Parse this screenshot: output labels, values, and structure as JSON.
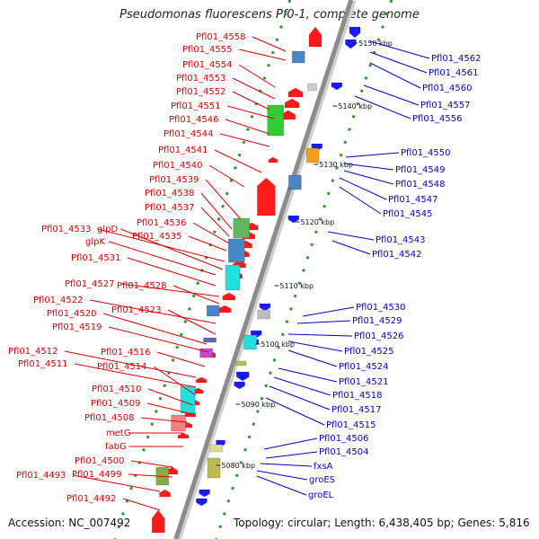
{
  "title": "Pseudomonas fluorescens Pf0-1, complete genome",
  "footer": {
    "accession": "Accession: NC_007492",
    "topology": "Topology: circular; Length: 6,438,405 bp; Genes: 5,816"
  },
  "colors": {
    "left_labels": "#dd0000",
    "right_labels": "#0000cc",
    "forward_arrows": "#ff1a1a",
    "reverse_arrows": "#1a1aff",
    "backbone": "#8c8c8c",
    "tick": "#2a9a2a"
  },
  "scale": [
    "5150 kbp",
    "5140 kbp",
    "5130 kbp",
    "5120 kbp",
    "5110 kbp",
    "5100 kbp",
    "5090 kbp",
    "5080 kbp"
  ],
  "left_labels": [
    "Pfl01_4558",
    "Pfl01_4555",
    "Pfl01_4554",
    "Pfl01_4553",
    "Pfl01_4552",
    "Pfl01_4551",
    "Pfl01_4546",
    "Pfl01_4544",
    "Pfl01_4541",
    "Pfl01_4540",
    "Pfl01_4539",
    "Pfl01_4538",
    "Pfl01_4537",
    "Pfl01_4536",
    "Pfl01_4535",
    "Pfl01_4533",
    "glpD",
    "glpK",
    "Pfl01_4531",
    "Pfl01_4527",
    "Pfl01_4528",
    "Pfl01_4522",
    "Pfl01_4523",
    "Pfl01_4520",
    "Pfl01_4519",
    "Pfl01_4512",
    "Pfl01_4516",
    "Pfl01_4511",
    "Pfl01_4514",
    "Pfl01_4510",
    "Pfl01_4509",
    "Pfl01_4508",
    "metG",
    "fabG",
    "Pfl01_4500",
    "Pfl01_4499",
    "Pfl01_4493",
    "Pfl01_4492"
  ],
  "right_labels": [
    "Pfl01_4562",
    "Pfl01_4561",
    "Pfl01_4560",
    "Pfl01_4557",
    "Pfl01_4556",
    "Pfl01_4550",
    "Pfl01_4549",
    "Pfl01_4548",
    "Pfl01_4547",
    "Pfl01_4545",
    "Pfl01_4543",
    "Pfl01_4542",
    "Pfl01_4530",
    "Pfl01_4529",
    "Pfl01_4526",
    "Pfl01_4525",
    "Pfl01_4524",
    "Pfl01_4521",
    "Pfl01_4518",
    "Pfl01_4517",
    "Pfl01_4515",
    "Pfl01_4506",
    "Pfl01_4504",
    "fxsA",
    "groES",
    "groEL"
  ]
}
